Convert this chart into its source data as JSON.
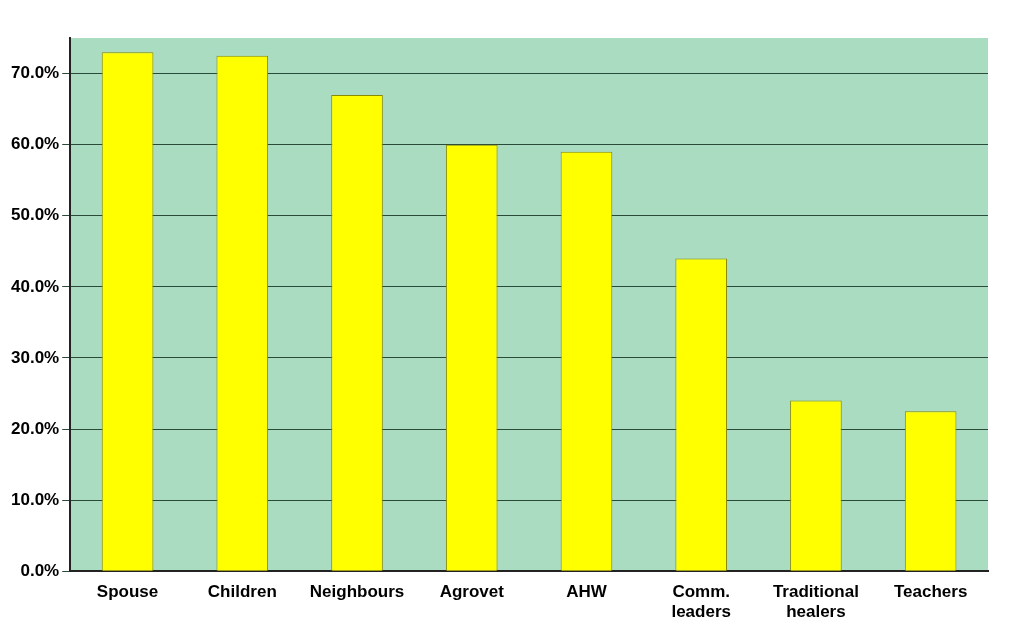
{
  "chart_data": {
    "type": "bar",
    "categories": [
      "Spouse",
      "Children",
      "Neighbours",
      "Agrovet",
      "AHW",
      "Comm. leaders",
      "Traditional healers",
      "Teachers"
    ],
    "values": [
      73,
      72.5,
      67,
      60,
      59,
      44,
      24,
      22.5
    ],
    "color": "#ffff00",
    "ylim": [
      0,
      75
    ],
    "yticks": [
      {
        "value": 0,
        "label": "0.0%"
      },
      {
        "value": 10,
        "label": "10.0%"
      },
      {
        "value": 20,
        "label": "20.0%"
      },
      {
        "value": 30,
        "label": "30.0%"
      },
      {
        "value": 40,
        "label": "40.0%"
      },
      {
        "value": 50,
        "label": "50.0%"
      },
      {
        "value": 60,
        "label": "60.0%"
      },
      {
        "value": 70,
        "label": "70.0%"
      }
    ],
    "grid": "y",
    "legend": false
  }
}
